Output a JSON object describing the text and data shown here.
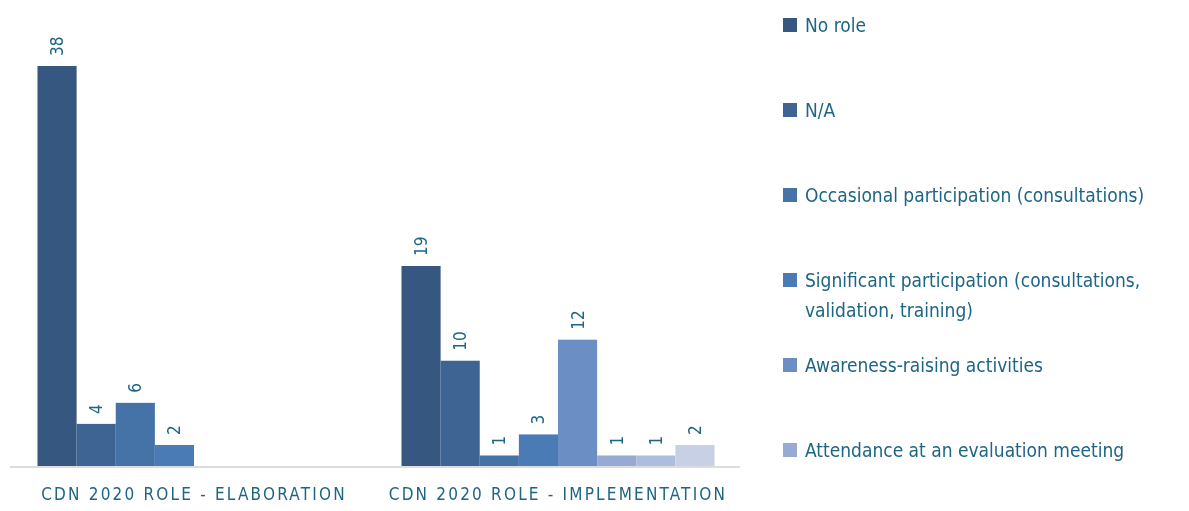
{
  "chart_data": {
    "type": "bar",
    "categories": [
      "CDN 2020 ROLE - ELABORATION",
      "CDN 2020 ROLE - IMPLEMENTATION"
    ],
    "series": [
      {
        "name": "No role",
        "color": "#36577f",
        "values": [
          38,
          19
        ]
      },
      {
        "name": "N/A",
        "color": "#3d6493",
        "values": [
          4,
          10
        ]
      },
      {
        "name": "Occasional participation (consultations)",
        "color": "#4673a7",
        "values": [
          6,
          1
        ]
      },
      {
        "name": "Significant participation (consultations, validation, training)",
        "color": "#4b7bb5",
        "values": [
          2,
          3
        ]
      },
      {
        "name": "Awareness-raising activities",
        "color": "#6b8fc4",
        "values": [
          null,
          12
        ]
      },
      {
        "name": "Attendance at an evaluation meeting",
        "color": "#96aad4",
        "values": [
          null,
          1
        ]
      },
      {
        "color": "#aebddd",
        "values": [
          null,
          1
        ]
      },
      {
        "color": "#c7d0e4",
        "values": [
          null,
          2
        ]
      }
    ],
    "data_labels": true,
    "legend": "right"
  }
}
